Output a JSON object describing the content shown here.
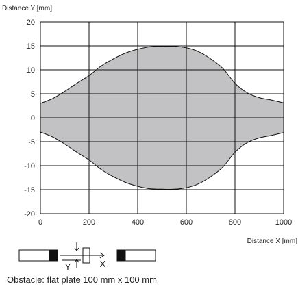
{
  "chart_data": {
    "type": "area",
    "ylabel": "Distance Y [mm]",
    "xlabel": "Distance X [mm]",
    "xlim": [
      0,
      1000
    ],
    "ylim": [
      -20,
      20
    ],
    "x_ticks": [
      "0",
      "200",
      "400",
      "600",
      "800",
      "1000"
    ],
    "y_ticks": [
      "20",
      "15",
      "10",
      "5",
      "0",
      "-5",
      "-10",
      "-15",
      "-20"
    ],
    "grid": true,
    "fill_color": "#c2c2c4",
    "outline": {
      "x": [
        0,
        50,
        100,
        150,
        200,
        250,
        300,
        350,
        400,
        450,
        500,
        550,
        600,
        650,
        700,
        750,
        800,
        850,
        900,
        950,
        1000
      ],
      "y": [
        3.0,
        4.0,
        5.5,
        7.2,
        8.8,
        10.8,
        12.3,
        13.5,
        14.3,
        14.8,
        14.9,
        14.9,
        14.6,
        13.8,
        12.3,
        10.3,
        7.2,
        5.2,
        4.2,
        3.7,
        3.1
      ]
    },
    "symmetric_about_zero": true
  },
  "diagram": {
    "axis_y_label": "Y",
    "axis_x_label": "X"
  },
  "caption": "Obstacle: flat plate 100 mm x 100 mm"
}
